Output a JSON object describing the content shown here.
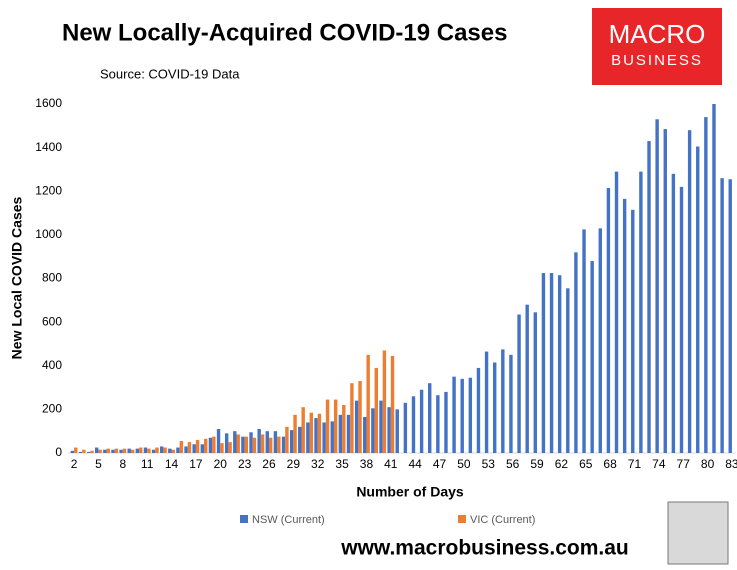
{
  "chart_data": {
    "type": "bar",
    "title": "New Locally-Acquired COVID-19 Cases",
    "source": "Source: COVID-19 Data",
    "logo": [
      "MACRO",
      "BUSINESS"
    ],
    "website": "www.macrobusiness.com.au",
    "x_label": "Number of Days",
    "y_label": "New Local COVID Cases",
    "categories": [
      "2",
      null,
      null,
      "5",
      null,
      null,
      "8",
      null,
      null,
      "11",
      null,
      null,
      "14",
      null,
      null,
      "17",
      null,
      null,
      "20",
      null,
      null,
      "23",
      null,
      null,
      "26",
      null,
      null,
      "29",
      null,
      null,
      "32",
      null,
      null,
      "35",
      null,
      null,
      "38",
      null,
      null,
      "41",
      null,
      null,
      "44",
      null,
      null,
      "47",
      null,
      null,
      "50",
      null,
      null,
      "53",
      null,
      null,
      "56",
      null,
      null,
      "59",
      null,
      null,
      "62",
      null,
      null,
      "65",
      null,
      null,
      "68",
      null,
      null,
      "71",
      null,
      null,
      "74",
      null,
      null,
      "77",
      null,
      null,
      "80",
      null,
      null,
      "83"
    ],
    "series": [
      {
        "name": "NSW (Current)",
        "color": "#4472c4",
        "values": [
          10,
          5,
          5,
          25,
          15,
          15,
          15,
          20,
          20,
          25,
          15,
          30,
          20,
          25,
          30,
          40,
          40,
          70,
          110,
          90,
          100,
          75,
          95,
          110,
          100,
          100,
          75,
          105,
          120,
          140,
          160,
          140,
          145,
          175,
          175,
          240,
          165,
          205,
          240,
          210,
          200,
          230,
          260,
          290,
          320,
          265,
          280,
          350,
          340,
          345,
          390,
          465,
          415,
          475,
          450,
          635,
          680,
          645,
          825,
          825,
          815,
          755,
          920,
          1025,
          880,
          1030,
          1215,
          1290,
          1165,
          1115,
          1290,
          1430,
          1530,
          1485,
          1280,
          1220,
          1480,
          1405,
          1540,
          1600,
          1260,
          1255
        ]
      },
      {
        "name": "VIC (Current)",
        "color": "#ed7d31",
        "values": [
          25,
          15,
          10,
          15,
          20,
          20,
          20,
          15,
          25,
          20,
          25,
          25,
          15,
          55,
          50,
          60,
          65,
          75,
          45,
          50,
          85,
          75,
          70,
          85,
          70,
          75,
          120,
          175,
          210,
          185,
          180,
          245,
          245,
          220,
          320,
          330,
          450,
          390,
          470,
          445,
          null,
          null,
          null,
          null,
          null,
          null,
          null,
          null,
          null,
          null,
          null,
          null,
          null,
          null,
          null,
          null,
          null,
          null,
          null,
          null,
          null,
          null,
          null,
          null,
          null,
          null,
          null,
          null,
          null,
          null,
          null,
          null,
          null,
          null,
          null,
          null,
          null,
          null,
          null,
          null,
          null,
          null
        ]
      }
    ],
    "ylim": [
      0,
      1600
    ],
    "yticks": [
      0,
      200,
      400,
      600,
      800,
      1000,
      1200,
      1400,
      1600
    ],
    "grid": false
  }
}
